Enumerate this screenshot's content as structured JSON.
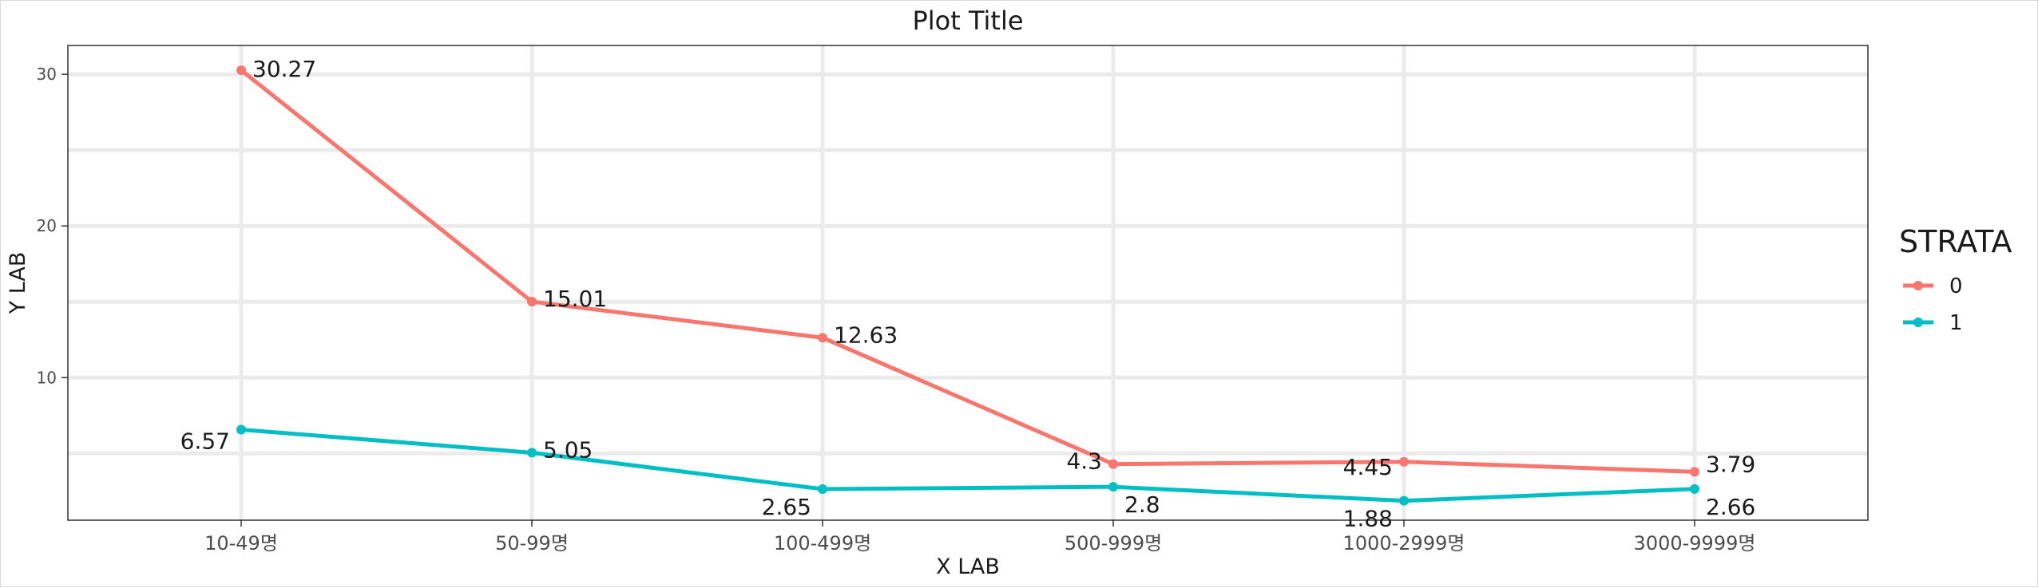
{
  "chart_data": {
    "type": "line",
    "title": "Plot Title",
    "xlabel": "X LAB",
    "ylabel": "Y LAB",
    "categories": [
      "10-49명",
      "50-99명",
      "100-499명",
      "500-999명",
      "1000-2999명",
      "3000-9999명"
    ],
    "ylim": [
      0.6,
      31.9
    ],
    "yticks": [
      10,
      20,
      30
    ],
    "grid": true,
    "legend": {
      "title": "STRATA",
      "position": "right"
    },
    "series": [
      {
        "name": "0",
        "color": "#F8766D",
        "values": [
          30.27,
          15.01,
          12.63,
          4.3,
          4.45,
          3.79
        ]
      },
      {
        "name": "1",
        "color": "#00BFC4",
        "values": [
          6.57,
          5.05,
          2.65,
          2.8,
          1.88,
          2.66
        ]
      }
    ]
  }
}
